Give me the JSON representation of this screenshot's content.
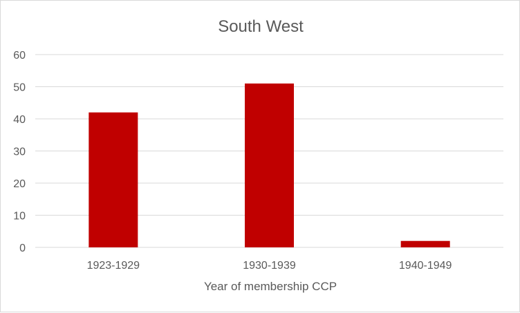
{
  "chart_data": {
    "type": "bar",
    "title": "South West",
    "xlabel": "Year of membership CCP",
    "ylabel": "",
    "categories": [
      "1923-1929",
      "1930-1939",
      "1940-1949"
    ],
    "values": [
      42,
      51,
      2
    ],
    "ylim": [
      0,
      60
    ],
    "yticks": [
      0,
      10,
      20,
      30,
      40,
      50,
      60
    ],
    "grid": true,
    "legend": "none",
    "bar_color": "#c00000",
    "grid_color": "#d9d9d9",
    "text_color": "#595959"
  }
}
